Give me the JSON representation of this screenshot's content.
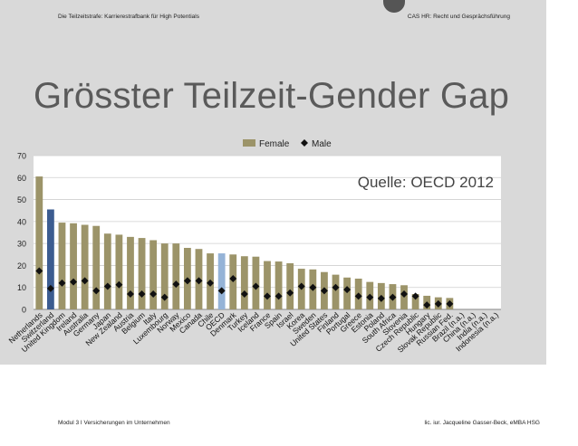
{
  "slide": {
    "header_left": "Die Teilzeitstrafe: Karrierestrafbank für High Potentials",
    "header_right": "CAS HR: Recht und Gesprächsführung",
    "title": "Grösster Teilzeit-Gender Gap",
    "footer_left": "Modul 3 I Versicherungen im Unternehmen",
    "footer_right": "lic. iur. Jacqueline Gasser-Beck, eMBA HSG"
  },
  "colors": {
    "female_bar": "#9c9469",
    "highlight_dark": "#3c5c90",
    "highlight_light": "#95b3d7",
    "male_marker": "#111111",
    "plot_bg": "#ffffff",
    "grid": "#cfcfcf",
    "slide_bg": "#d9d9d9"
  },
  "chart_data": {
    "type": "bar",
    "annotation": "Quelle: OECD 2012",
    "legend_position": "top-center",
    "grid": true,
    "ylim": [
      0,
      70
    ],
    "yticks": [
      0,
      10,
      20,
      30,
      40,
      50,
      60,
      70
    ],
    "categories": [
      "Netherlands",
      "Switzerland",
      "United Kingdom",
      "Ireland",
      "Australia",
      "Germany",
      "Japan",
      "New Zealand",
      "Austria",
      "Belgium",
      "Italy",
      "Luxembourg",
      "Norway",
      "Mexico",
      "Canada",
      "Chile",
      "OECD",
      "Denmark",
      "Turkey",
      "Iceland",
      "France",
      "Spain",
      "Israel",
      "Korea",
      "Sweden",
      "United States",
      "Finland",
      "Portugal",
      "Greece",
      "Estonia",
      "Poland",
      "South Africa",
      "Slovenia",
      "Czech Republic",
      "Hungary",
      "Slovak Republic",
      "Russian Fed.",
      "Brazil (n.a.)",
      "China (n.a.)",
      "India (n.a.)",
      "Indonesia (n.a.)"
    ],
    "highlight": {
      "Switzerland": "dark",
      "OECD": "light"
    },
    "series": [
      {
        "name": "Female",
        "type": "bar",
        "values": [
          60.5,
          45.5,
          39.5,
          39.2,
          38.5,
          38,
          34.5,
          34,
          33,
          32.5,
          31.5,
          30,
          30,
          28,
          27.5,
          25.5,
          25.5,
          25,
          24.2,
          24,
          22,
          21.8,
          21,
          18.5,
          18.2,
          17,
          15.8,
          14.5,
          14,
          12.5,
          12,
          11.5,
          11,
          7,
          6.2,
          5.5,
          5.2,
          null,
          null,
          null,
          null
        ]
      },
      {
        "name": "Male",
        "type": "marker",
        "values": [
          17.5,
          9.5,
          12,
          12.5,
          13,
          8.5,
          10.5,
          11.2,
          7,
          7,
          7,
          5.5,
          11.5,
          13,
          13,
          12,
          8.5,
          14,
          7,
          10.5,
          6,
          6,
          7.5,
          10.5,
          10,
          8.5,
          10,
          9,
          6,
          5.5,
          5,
          5.5,
          7,
          6,
          2,
          2.5,
          2.5,
          null,
          null,
          null,
          null
        ]
      }
    ]
  }
}
